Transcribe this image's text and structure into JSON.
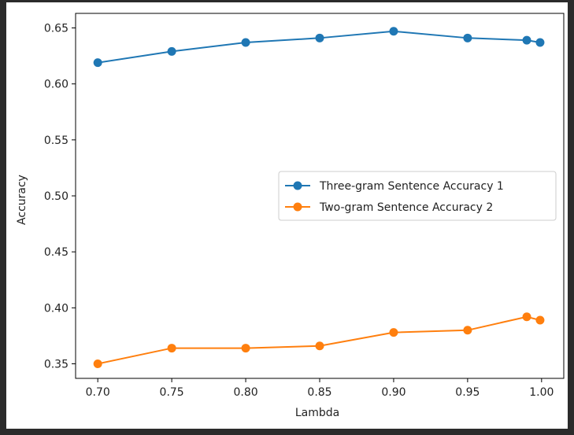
{
  "chart_data": {
    "type": "line",
    "title": "",
    "xlabel": "Lambda",
    "ylabel": "Accuracy",
    "xlim": [
      0.685,
      1.015
    ],
    "ylim": [
      0.337,
      0.663
    ],
    "xticks": [
      0.7,
      0.75,
      0.8,
      0.85,
      0.9,
      0.95,
      1.0
    ],
    "xtick_labels": [
      "0.70",
      "0.75",
      "0.80",
      "0.85",
      "0.90",
      "0.95",
      "1.00"
    ],
    "yticks": [
      0.35,
      0.4,
      0.45,
      0.5,
      0.55,
      0.6,
      0.65
    ],
    "ytick_labels": [
      "0.35",
      "0.40",
      "0.45",
      "0.50",
      "0.55",
      "0.60",
      "0.65"
    ],
    "grid": false,
    "legend_position": "center-right",
    "x": [
      0.7,
      0.75,
      0.8,
      0.85,
      0.9,
      0.95,
      0.99,
      0.999
    ],
    "series": [
      {
        "name": "Three-gram Sentence Accuracy 1",
        "color": "#1f77b4",
        "values": [
          0.619,
          0.629,
          0.637,
          0.641,
          0.647,
          0.641,
          0.639,
          0.637
        ]
      },
      {
        "name": "Two-gram Sentence Accuracy 2",
        "color": "#ff7f0e",
        "values": [
          0.35,
          0.364,
          0.364,
          0.366,
          0.378,
          0.38,
          0.392,
          0.389
        ]
      }
    ]
  }
}
